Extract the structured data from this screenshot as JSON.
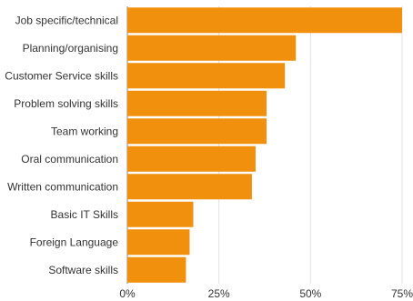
{
  "chart_data": {
    "type": "bar",
    "orientation": "horizontal",
    "categories": [
      "Job specific/technical",
      "Planning/organising",
      "Customer Service skills",
      "Problem solving skills",
      "Team working",
      "Oral communication",
      "Written communication",
      "Basic IT Skills",
      "Foreign Language",
      "Software skills"
    ],
    "values": [
      75,
      46,
      43,
      38,
      38,
      35,
      34,
      18,
      17,
      16
    ],
    "xlim": [
      0,
      75
    ],
    "ticks": [
      {
        "value": 0,
        "label": "0%"
      },
      {
        "value": 25,
        "label": "25%"
      },
      {
        "value": 50,
        "label": "50%"
      },
      {
        "value": 75,
        "label": "75%"
      }
    ],
    "title": "",
    "xlabel": "",
    "ylabel": "",
    "grid": true,
    "bar_color": "#f0900c",
    "grid_color": "#e0e0e0"
  }
}
